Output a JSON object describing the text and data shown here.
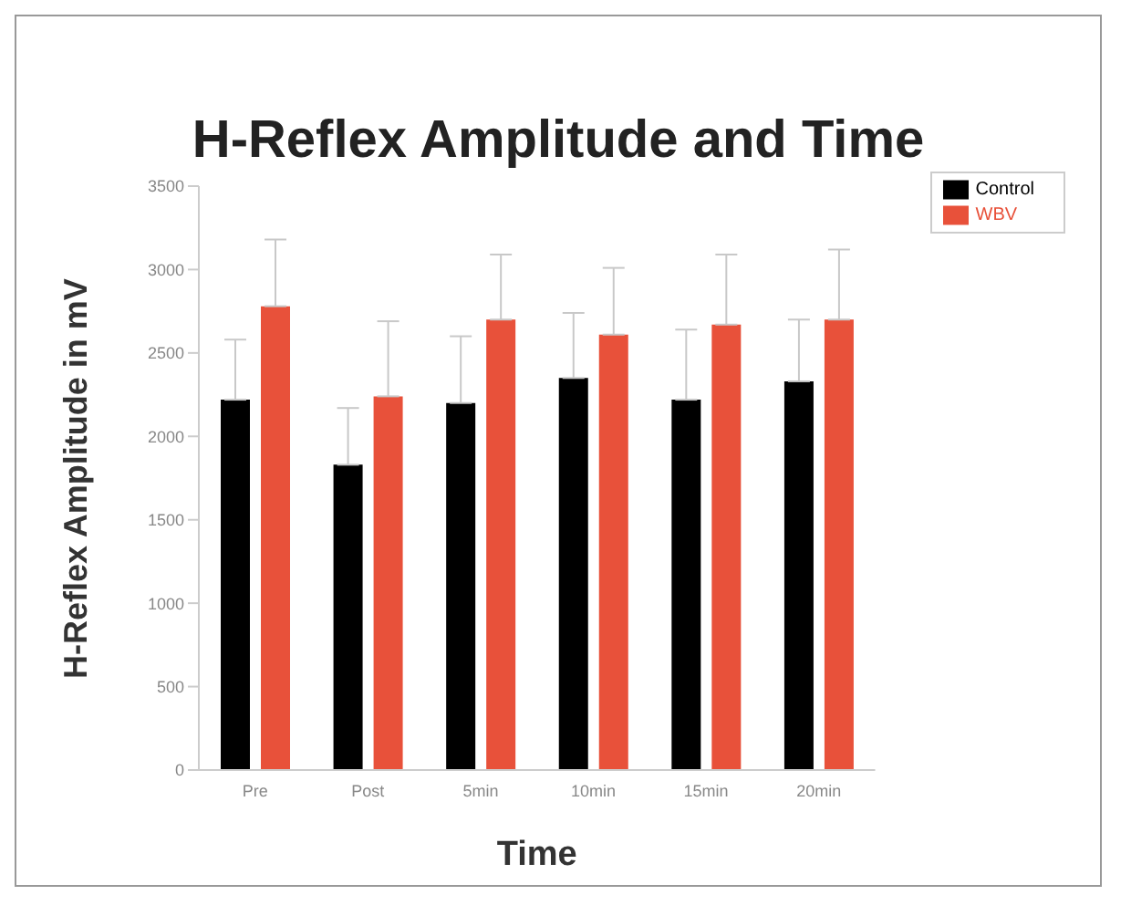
{
  "chart_data": {
    "type": "bar",
    "title": "H-Reflex Amplitude and Time",
    "xlabel": "Time",
    "ylabel": "H-Reflex Amplitude in mV",
    "categories": [
      "Pre",
      "Post",
      "5min",
      "10min",
      "15min",
      "20min"
    ],
    "series": [
      {
        "name": "Control",
        "color": "#000000",
        "values": [
          2220,
          1830,
          2200,
          2350,
          2220,
          2330
        ],
        "errors": [
          [
            2220,
            2580
          ],
          [
            1830,
            2170
          ],
          [
            2200,
            2600
          ],
          [
            2350,
            2740
          ],
          [
            2220,
            2640
          ],
          [
            2330,
            2700
          ]
        ]
      },
      {
        "name": "WBV",
        "color": "#e8513a",
        "values": [
          2780,
          2240,
          2700,
          2610,
          2670,
          2700
        ],
        "errors": [
          [
            2780,
            3180
          ],
          [
            2240,
            2690
          ],
          [
            2700,
            3090
          ],
          [
            2610,
            3010
          ],
          [
            2670,
            3090
          ],
          [
            2700,
            3120
          ]
        ]
      }
    ],
    "ylim": [
      0,
      3500
    ],
    "yticks": [
      0,
      500,
      1000,
      1500,
      2000,
      2500,
      3000,
      3500
    ],
    "grid": false,
    "legend": "top right"
  }
}
